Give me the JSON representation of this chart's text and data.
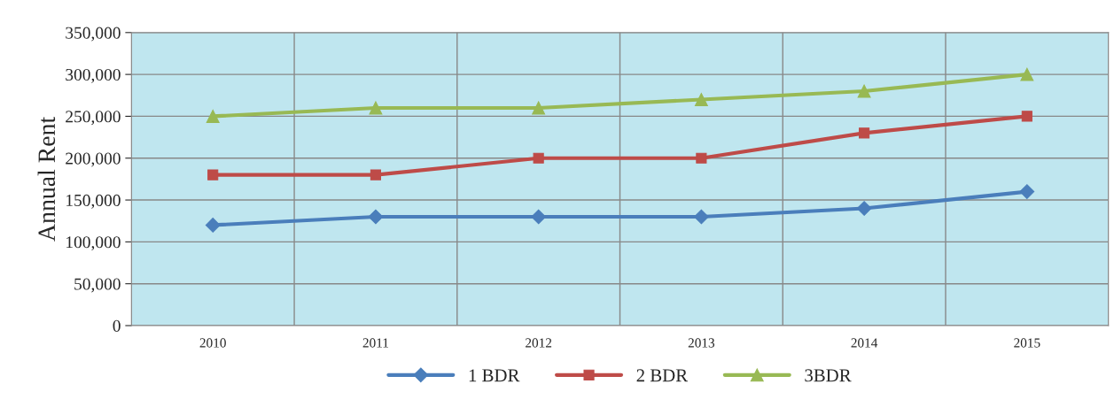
{
  "chart_data": {
    "type": "line",
    "ylabel": "Annual Rent",
    "categories": [
      "2010",
      "2011",
      "2012",
      "2013",
      "2014",
      "2015"
    ],
    "series": [
      {
        "name": "1 BDR",
        "color": "#4a7ebb",
        "marker": "diamond",
        "values": [
          120000,
          130000,
          130000,
          130000,
          140000,
          160000
        ]
      },
      {
        "name": "2 BDR",
        "color": "#be4b48",
        "marker": "square",
        "values": [
          180000,
          180000,
          200000,
          200000,
          230000,
          250000
        ]
      },
      {
        "name": "3BDR",
        "color": "#98b954",
        "marker": "triangle",
        "values": [
          250000,
          260000,
          260000,
          270000,
          280000,
          300000
        ]
      }
    ],
    "ylim": [
      0,
      350000
    ],
    "yticks": [
      {
        "value": 0,
        "label": "0"
      },
      {
        "value": 50000,
        "label": "50,000"
      },
      {
        "value": 100000,
        "label": "100,000"
      },
      {
        "value": 150000,
        "label": "150,000"
      },
      {
        "value": 200000,
        "label": "200,000"
      },
      {
        "value": 250000,
        "label": "250,000"
      },
      {
        "value": 300000,
        "label": "300,000"
      },
      {
        "value": 350000,
        "label": "350,000"
      }
    ],
    "grid": true,
    "legend": "bottom",
    "line_style": "solid"
  }
}
